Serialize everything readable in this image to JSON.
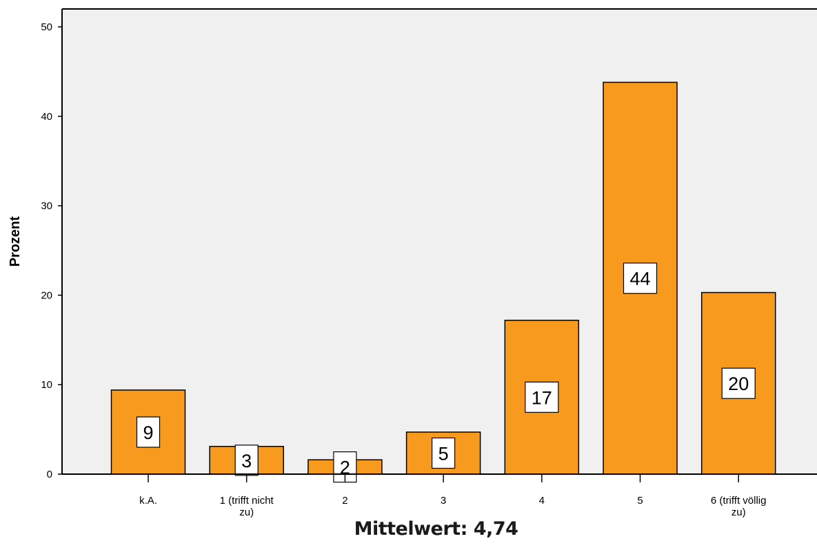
{
  "chart_data": {
    "type": "bar",
    "categories": [
      "k.A.",
      "1 (trifft nicht zu)",
      "2",
      "3",
      "4",
      "5",
      "6 (trifft völlig zu)"
    ],
    "category_lines": [
      [
        "k.A."
      ],
      [
        "1 (trifft nicht",
        "zu)"
      ],
      [
        "2"
      ],
      [
        "3"
      ],
      [
        "4"
      ],
      [
        "5"
      ],
      [
        "6 (trifft völlig",
        "zu)"
      ]
    ],
    "values": [
      9.4,
      3.1,
      1.6,
      4.7,
      17.2,
      43.8,
      20.3
    ],
    "data_labels": [
      "9",
      "3",
      "2",
      "5",
      "17",
      "44",
      "20"
    ],
    "ylabel": "Prozent",
    "xlabel": "",
    "title": "",
    "ylim": [
      0,
      52
    ],
    "yticks": [
      0,
      10,
      20,
      30,
      40,
      50
    ],
    "grid": false,
    "legend": "none",
    "colors": {
      "bar": "#f79a1e",
      "plot_background": "#f0f0f0",
      "outline": "#000000"
    }
  },
  "footer_text": "Mittelwert: 4,74"
}
